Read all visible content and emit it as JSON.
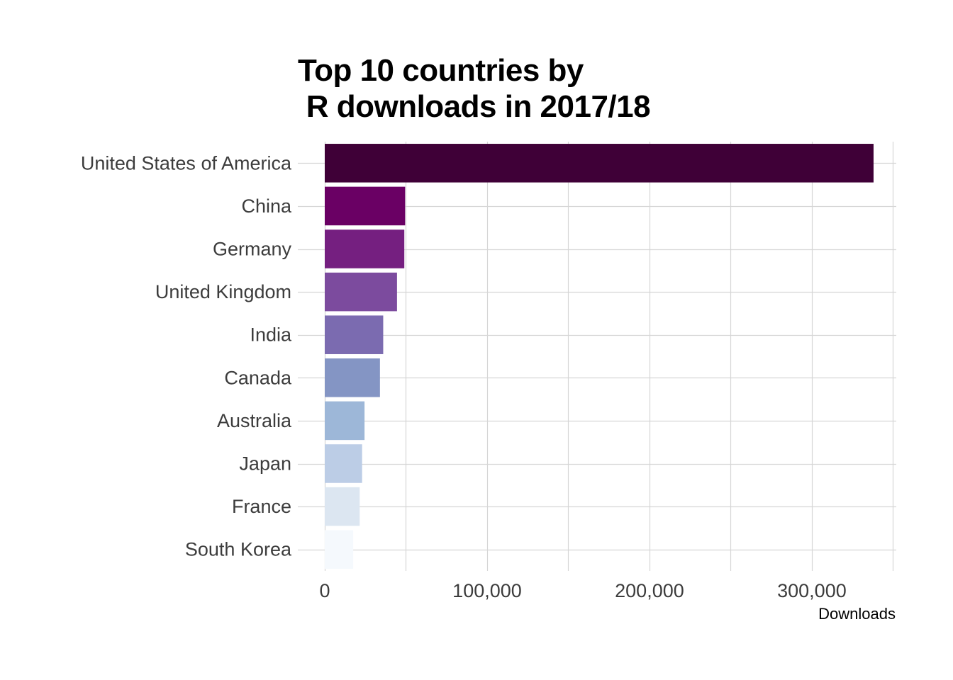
{
  "chart_data": {
    "type": "bar",
    "orientation": "horizontal",
    "title_line1": "Top 10 countries by",
    "title_line2": " R downloads in 2017/18",
    "xlabel": "Downloads",
    "ylabel": "",
    "xlim": [
      0,
      352000
    ],
    "x_ticks": [
      0,
      100000,
      200000,
      300000
    ],
    "x_tick_labels": [
      "0",
      "100,000",
      "200,000",
      "300,000"
    ],
    "grid": true,
    "legend": "none",
    "categories": [
      "United States of America",
      "China",
      "Germany",
      "United Kingdom",
      "India",
      "Canada",
      "Australia",
      "Japan",
      "France",
      "South Korea"
    ],
    "values": [
      338000,
      49500,
      49000,
      44500,
      36000,
      34000,
      24500,
      23000,
      21500,
      17500
    ],
    "colors": [
      "#3f0037",
      "#6a0064",
      "#751f80",
      "#7c4b9e",
      "#7b6bb0",
      "#8495c4",
      "#9db7d8",
      "#bccde6",
      "#dce6f1",
      "#f5f9fd"
    ]
  }
}
